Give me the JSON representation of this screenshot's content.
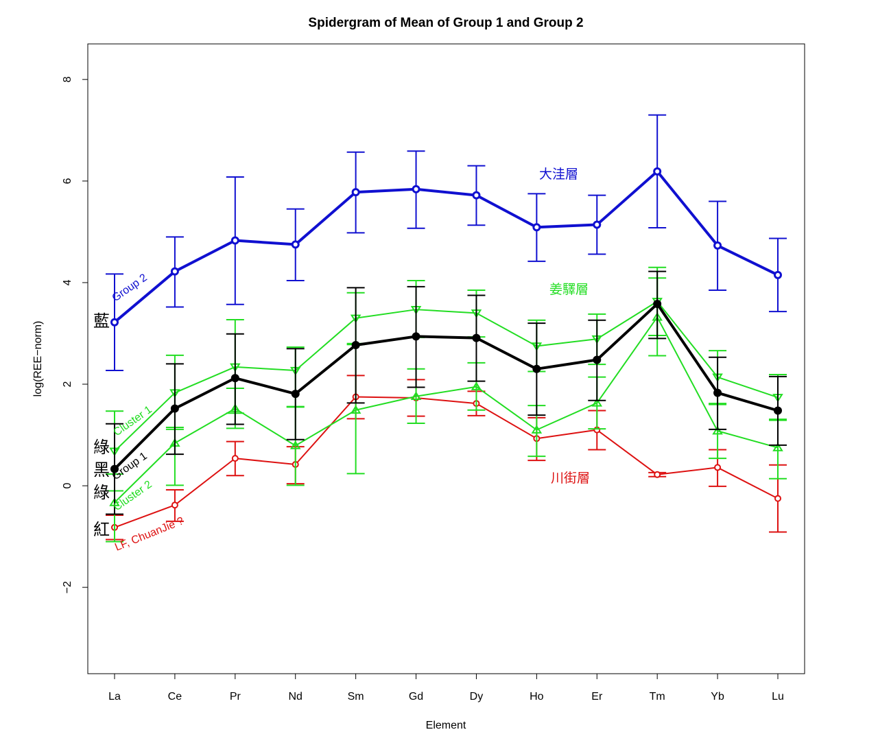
{
  "chart_data": {
    "type": "line",
    "title": "Spidergram of Mean of Group 1 and Group 2",
    "xlabel": "Element",
    "ylabel": "log(REE−norm)",
    "categories": [
      "La",
      "Ce",
      "Pr",
      "Nd",
      "Sm",
      "Gd",
      "Dy",
      "Ho",
      "Er",
      "Tm",
      "Yb",
      "Lu"
    ],
    "ylim": [
      -3.7,
      8.7
    ],
    "yticks": [
      -2,
      0,
      2,
      4,
      6,
      8
    ],
    "series": [
      {
        "name": "Group 2",
        "color": "#1010d0",
        "marker": "circle-open",
        "values": [
          3.22,
          4.22,
          4.83,
          4.75,
          5.78,
          5.84,
          5.72,
          5.09,
          5.14,
          6.19,
          4.73,
          4.15
        ],
        "upper": [
          4.17,
          4.9,
          6.08,
          5.45,
          6.57,
          6.59,
          6.3,
          5.75,
          5.72,
          7.3,
          5.6,
          4.87
        ],
        "lower": [
          2.27,
          3.52,
          3.57,
          4.04,
          4.98,
          5.07,
          5.13,
          4.42,
          4.56,
          5.08,
          3.85,
          3.43
        ]
      },
      {
        "name": "Cluster 1",
        "color": "#22dd22",
        "marker": "triangle-down",
        "values": [
          0.68,
          1.83,
          2.34,
          2.27,
          3.3,
          3.47,
          3.4,
          2.75,
          2.89,
          3.63,
          2.14,
          1.74
        ],
        "upper": [
          1.47,
          2.57,
          3.27,
          2.73,
          3.8,
          4.04,
          3.85,
          3.26,
          3.38,
          4.3,
          2.66,
          2.19
        ],
        "lower": [
          -0.1,
          1.11,
          1.43,
          1.55,
          2.8,
          2.92,
          2.93,
          2.25,
          2.39,
          2.96,
          1.6,
          1.29
        ]
      },
      {
        "name": "Group 1",
        "color": "#000000",
        "marker": "circle-filled",
        "values": [
          0.33,
          1.52,
          2.12,
          1.81,
          2.77,
          2.94,
          2.91,
          2.3,
          2.48,
          3.58,
          1.83,
          1.48
        ],
        "upper": [
          1.22,
          2.4,
          2.99,
          2.7,
          3.9,
          3.92,
          3.75,
          3.2,
          3.26,
          4.22,
          2.53,
          2.15
        ],
        "lower": [
          -0.56,
          0.62,
          1.21,
          0.91,
          1.63,
          1.94,
          2.06,
          1.39,
          1.68,
          2.9,
          1.11,
          0.8
        ]
      },
      {
        "name": "Cluster 2",
        "color": "#22dd22",
        "marker": "triangle-up",
        "values": [
          -0.33,
          0.84,
          1.52,
          0.79,
          1.49,
          1.76,
          1.95,
          1.1,
          1.63,
          3.32,
          1.08,
          0.75
        ],
        "upper": [
          0.23,
          1.15,
          1.92,
          1.56,
          2.78,
          2.3,
          2.42,
          1.58,
          2.14,
          4.09,
          1.62,
          1.31
        ],
        "lower": [
          -1.1,
          0.01,
          1.13,
          0.01,
          0.24,
          1.23,
          1.49,
          0.58,
          1.12,
          2.56,
          0.54,
          0.14
        ]
      },
      {
        "name": "LF, ChuanJie ?",
        "color": "#dd1111",
        "marker": "circle-open",
        "values": [
          -0.82,
          -0.38,
          0.54,
          0.42,
          1.75,
          1.73,
          1.62,
          0.93,
          1.1,
          0.22,
          0.36,
          -0.25
        ],
        "upper": [
          -0.58,
          -0.08,
          0.87,
          0.77,
          2.17,
          2.09,
          1.86,
          1.34,
          1.48,
          0.26,
          0.71,
          0.41
        ],
        "lower": [
          -1.06,
          -0.7,
          0.2,
          0.04,
          1.32,
          1.37,
          1.38,
          0.5,
          0.71,
          0.18,
          -0.01,
          -0.91
        ]
      }
    ],
    "annotations": [
      {
        "text": "Group 2",
        "color": "#1010d0",
        "anchor_category": "La",
        "rotated": true
      },
      {
        "text": "Cluster 1",
        "color": "#22dd22",
        "anchor_category": "La",
        "rotated": true
      },
      {
        "text": "Group 1",
        "color": "#000000",
        "anchor_category": "La",
        "rotated": true
      },
      {
        "text": "Cluster 2",
        "color": "#22dd22",
        "anchor_category": "La",
        "rotated": true
      },
      {
        "text": "LF, ChuanJie ?",
        "color": "#dd1111",
        "anchor_category": "La",
        "rotated": true
      }
    ],
    "cjk_labels": [
      {
        "text": "藍",
        "color": "#000000"
      },
      {
        "text": "綠",
        "color": "#000000"
      },
      {
        "text": "黑",
        "color": "#000000"
      },
      {
        "text": "綠",
        "color": "#000000"
      },
      {
        "text": "紅",
        "color": "#000000"
      },
      {
        "text": "大洼層",
        "color": "#1010d0"
      },
      {
        "text": "姜驛層",
        "color": "#22dd22"
      },
      {
        "text": "川街層",
        "color": "#dd1111"
      }
    ]
  }
}
